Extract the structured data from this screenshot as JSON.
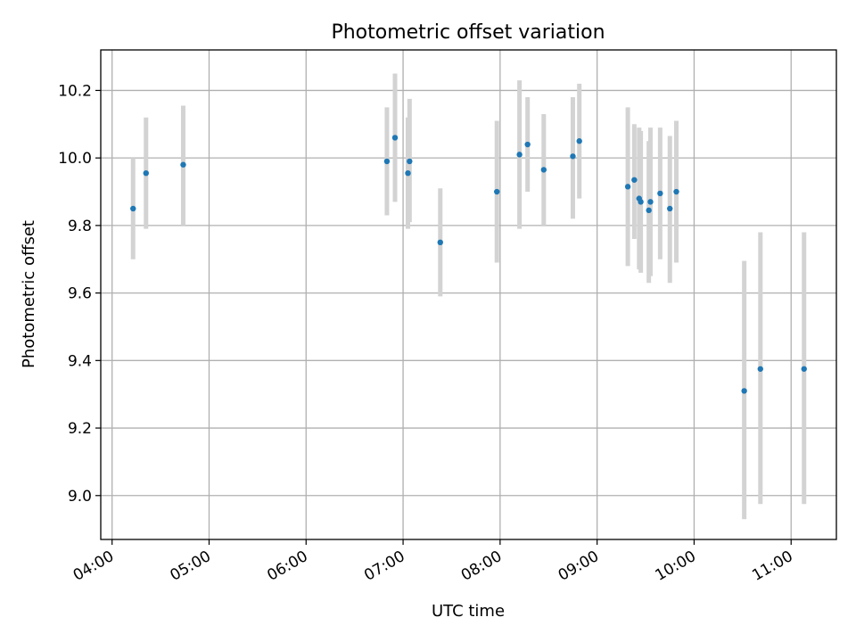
{
  "chart_data": {
    "type": "scatter",
    "title": "Photometric offset variation",
    "xlabel": "UTC time",
    "ylabel": "Photometric offset",
    "grid": true,
    "colors": {
      "point": "#1f77b4",
      "errorbar": "#d3d3d3"
    },
    "xlim": [
      "03:53",
      "11:28"
    ],
    "ylim": [
      8.87,
      10.32
    ],
    "x_ticks": [
      "04:00",
      "05:00",
      "06:00",
      "07:00",
      "08:00",
      "09:00",
      "10:00",
      "11:00"
    ],
    "y_ticks": [
      "9.0",
      "9.2",
      "9.4",
      "9.6",
      "9.8",
      "10.0",
      "10.2"
    ],
    "points": [
      {
        "x": "04:13",
        "y": 9.85,
        "yerr": [
          9.7,
          10.0
        ]
      },
      {
        "x": "04:21",
        "y": 9.955,
        "yerr": [
          9.79,
          10.12
        ]
      },
      {
        "x": "04:44",
        "y": 9.98,
        "yerr": [
          9.8,
          10.155
        ]
      },
      {
        "x": "06:50",
        "y": 9.99,
        "yerr": [
          9.83,
          10.15
        ]
      },
      {
        "x": "06:55",
        "y": 10.06,
        "yerr": [
          9.87,
          10.25
        ]
      },
      {
        "x": "07:03",
        "y": 9.955,
        "yerr": [
          9.79,
          10.12
        ]
      },
      {
        "x": "07:04",
        "y": 9.99,
        "yerr": [
          9.81,
          10.175
        ]
      },
      {
        "x": "07:23",
        "y": 9.75,
        "yerr": [
          9.59,
          9.91
        ]
      },
      {
        "x": "07:58",
        "y": 9.9,
        "yerr": [
          9.69,
          10.11
        ]
      },
      {
        "x": "08:12",
        "y": 10.01,
        "yerr": [
          9.79,
          10.23
        ]
      },
      {
        "x": "08:17",
        "y": 10.04,
        "yerr": [
          9.9,
          10.18
        ]
      },
      {
        "x": "08:27",
        "y": 9.965,
        "yerr": [
          9.8,
          10.13
        ]
      },
      {
        "x": "08:45",
        "y": 10.005,
        "yerr": [
          9.82,
          10.18
        ]
      },
      {
        "x": "08:49",
        "y": 10.05,
        "yerr": [
          9.88,
          10.22
        ]
      },
      {
        "x": "09:19",
        "y": 9.915,
        "yerr": [
          9.68,
          10.15
        ]
      },
      {
        "x": "09:23",
        "y": 9.935,
        "yerr": [
          9.76,
          10.1
        ]
      },
      {
        "x": "09:26",
        "y": 9.88,
        "yerr": [
          9.67,
          10.09
        ]
      },
      {
        "x": "09:27",
        "y": 9.87,
        "yerr": [
          9.66,
          10.08
        ]
      },
      {
        "x": "09:32",
        "y": 9.845,
        "yerr": [
          9.63,
          10.05
        ]
      },
      {
        "x": "09:33",
        "y": 9.87,
        "yerr": [
          9.65,
          10.09
        ]
      },
      {
        "x": "09:39",
        "y": 9.895,
        "yerr": [
          9.7,
          10.09
        ]
      },
      {
        "x": "09:45",
        "y": 9.85,
        "yerr": [
          9.63,
          10.065
        ]
      },
      {
        "x": "09:49",
        "y": 9.9,
        "yerr": [
          9.69,
          10.11
        ]
      },
      {
        "x": "10:31",
        "y": 9.31,
        "yerr": [
          8.93,
          9.695
        ]
      },
      {
        "x": "10:41",
        "y": 9.375,
        "yerr": [
          8.975,
          9.78
        ]
      },
      {
        "x": "11:08",
        "y": 9.375,
        "yerr": [
          8.975,
          9.78
        ]
      }
    ]
  }
}
